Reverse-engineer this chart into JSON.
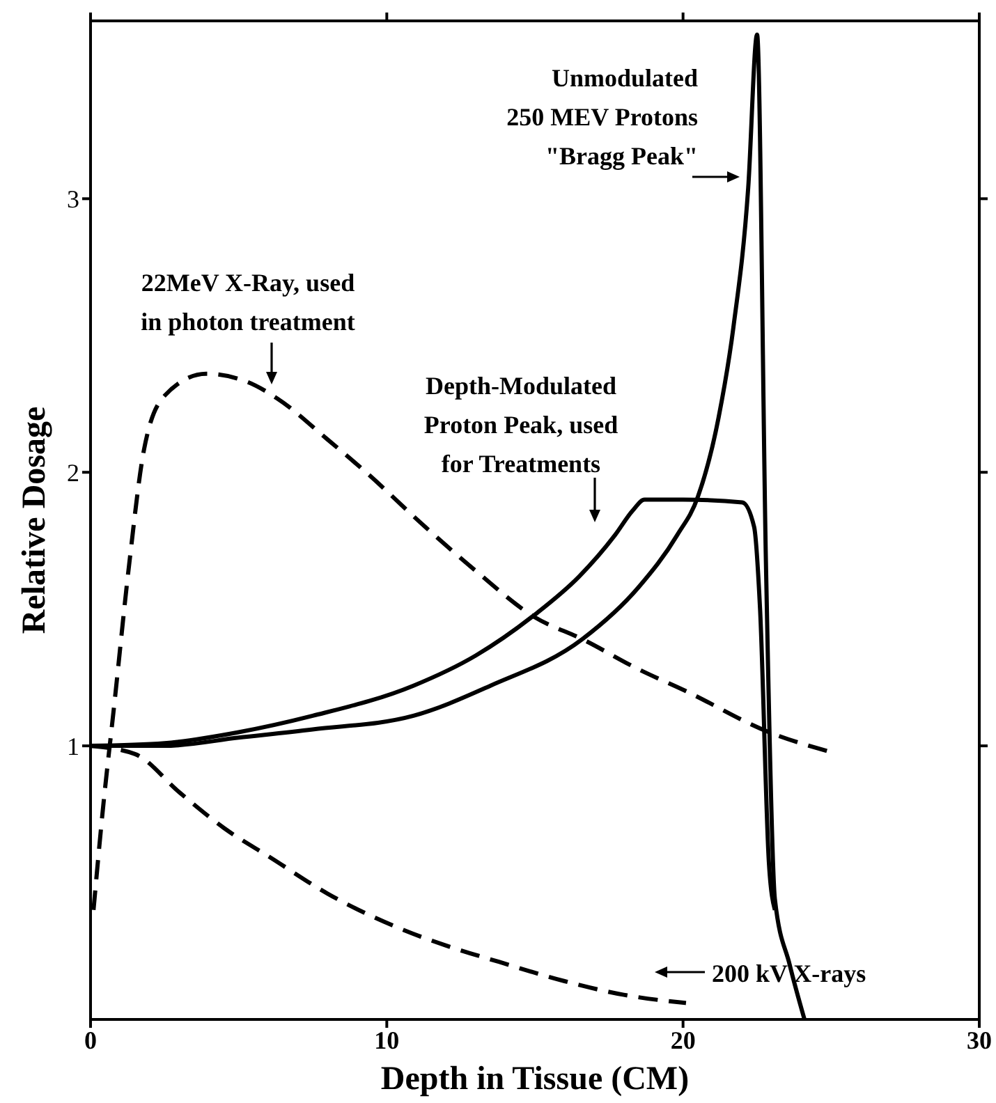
{
  "chart_data": {
    "type": "line",
    "xlabel": "Depth in Tissue (CM)",
    "ylabel": "Relative Dosage",
    "xlim": [
      0,
      30
    ],
    "xticks": [
      0,
      10,
      20,
      30
    ],
    "ylim": [
      0,
      3.65
    ],
    "yticks": [
      1,
      2,
      3
    ],
    "grid": false,
    "marker": "none",
    "series": [
      {
        "color": "#000000",
        "line_style": "dashed",
        "x": [
          0.1,
          0.4,
          0.8,
          1.3,
          1.8,
          2.5,
          3.9,
          5.3,
          6.3,
          8,
          9.3,
          11.3,
          13,
          15,
          16.6,
          18.5,
          20.1,
          22.9,
          24.9
        ],
        "values": [
          0.4,
          0.75,
          1.15,
          1.66,
          2.08,
          2.28,
          2.36,
          2.33,
          2.27,
          2.12,
          2.0,
          1.8,
          1.64,
          1.47,
          1.39,
          1.28,
          1.2,
          1.05,
          0.98
        ]
      },
      {
        "color": "#000000",
        "line_style": "dashed",
        "x": [
          0,
          1.5,
          3,
          4.5,
          6.1,
          8,
          10.5,
          12,
          13.8,
          16,
          18,
          20.1
        ],
        "values": [
          1.0,
          0.97,
          0.83,
          0.7,
          0.59,
          0.46,
          0.33,
          0.27,
          0.21,
          0.14,
          0.09,
          0.06
        ]
      },
      {
        "color": "#000000",
        "line_style": "solid",
        "x": [
          0,
          2.5,
          5,
          7.5,
          10.9,
          13.5,
          16.6,
          18.5,
          19.8,
          20.5,
          21.2,
          21.7,
          22.2,
          22.5,
          22.8,
          23.1,
          23.6,
          24.1
        ],
        "values": [
          1.0,
          1.0,
          1.03,
          1.06,
          1.11,
          1.22,
          1.39,
          1.58,
          1.77,
          1.91,
          2.2,
          2.53,
          3.04,
          3.6,
          1.66,
          0.44,
          0.2,
          0.0
        ]
      },
      {
        "color": "#000000",
        "line_style": "solid",
        "x": [
          0,
          2.5,
          5,
          7.5,
          10.9,
          13,
          15,
          16.5,
          17.7,
          18.3,
          18.7,
          20,
          22,
          22.4,
          22.6,
          22.9,
          23.1
        ],
        "values": [
          1.0,
          1.01,
          1.05,
          1.11,
          1.22,
          1.33,
          1.48,
          1.62,
          1.77,
          1.86,
          1.9,
          1.9,
          1.89,
          1.8,
          1.5,
          0.57,
          0.4
        ]
      }
    ],
    "annotations": [
      "22MeV X-Ray, used\nin photon treatment",
      "Depth-Modulated\nProton Peak,  used\nfor Treatments",
      "Unmodulated\n250 MEV Protons\n\"Bragg Peak\"",
      "200 kV X-rays"
    ]
  }
}
